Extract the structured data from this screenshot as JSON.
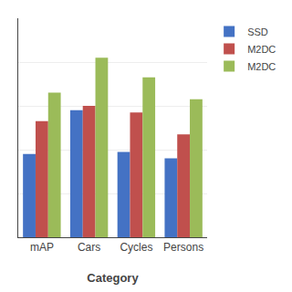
{
  "chart_data": {
    "type": "bar",
    "categories": [
      "mAP",
      "Cars",
      "Cycles",
      "Persons"
    ],
    "series": [
      {
        "name": "SSD",
        "color": "#4472C4",
        "values": [
          0.38,
          0.58,
          0.39,
          0.36
        ]
      },
      {
        "name": "M2DC",
        "color": "#C0504D",
        "values": [
          0.53,
          0.6,
          0.57,
          0.47
        ]
      },
      {
        "name": "M2DC",
        "color": "#9BBB59",
        "values": [
          0.66,
          0.82,
          0.73,
          0.63
        ]
      }
    ],
    "xlabel": "Category",
    "ylim": [
      0,
      1.0
    ],
    "yticks": [
      0.2,
      0.4,
      0.6,
      0.8,
      1.0
    ],
    "grid": true,
    "legend": "right",
    "tick_labels": "x"
  }
}
